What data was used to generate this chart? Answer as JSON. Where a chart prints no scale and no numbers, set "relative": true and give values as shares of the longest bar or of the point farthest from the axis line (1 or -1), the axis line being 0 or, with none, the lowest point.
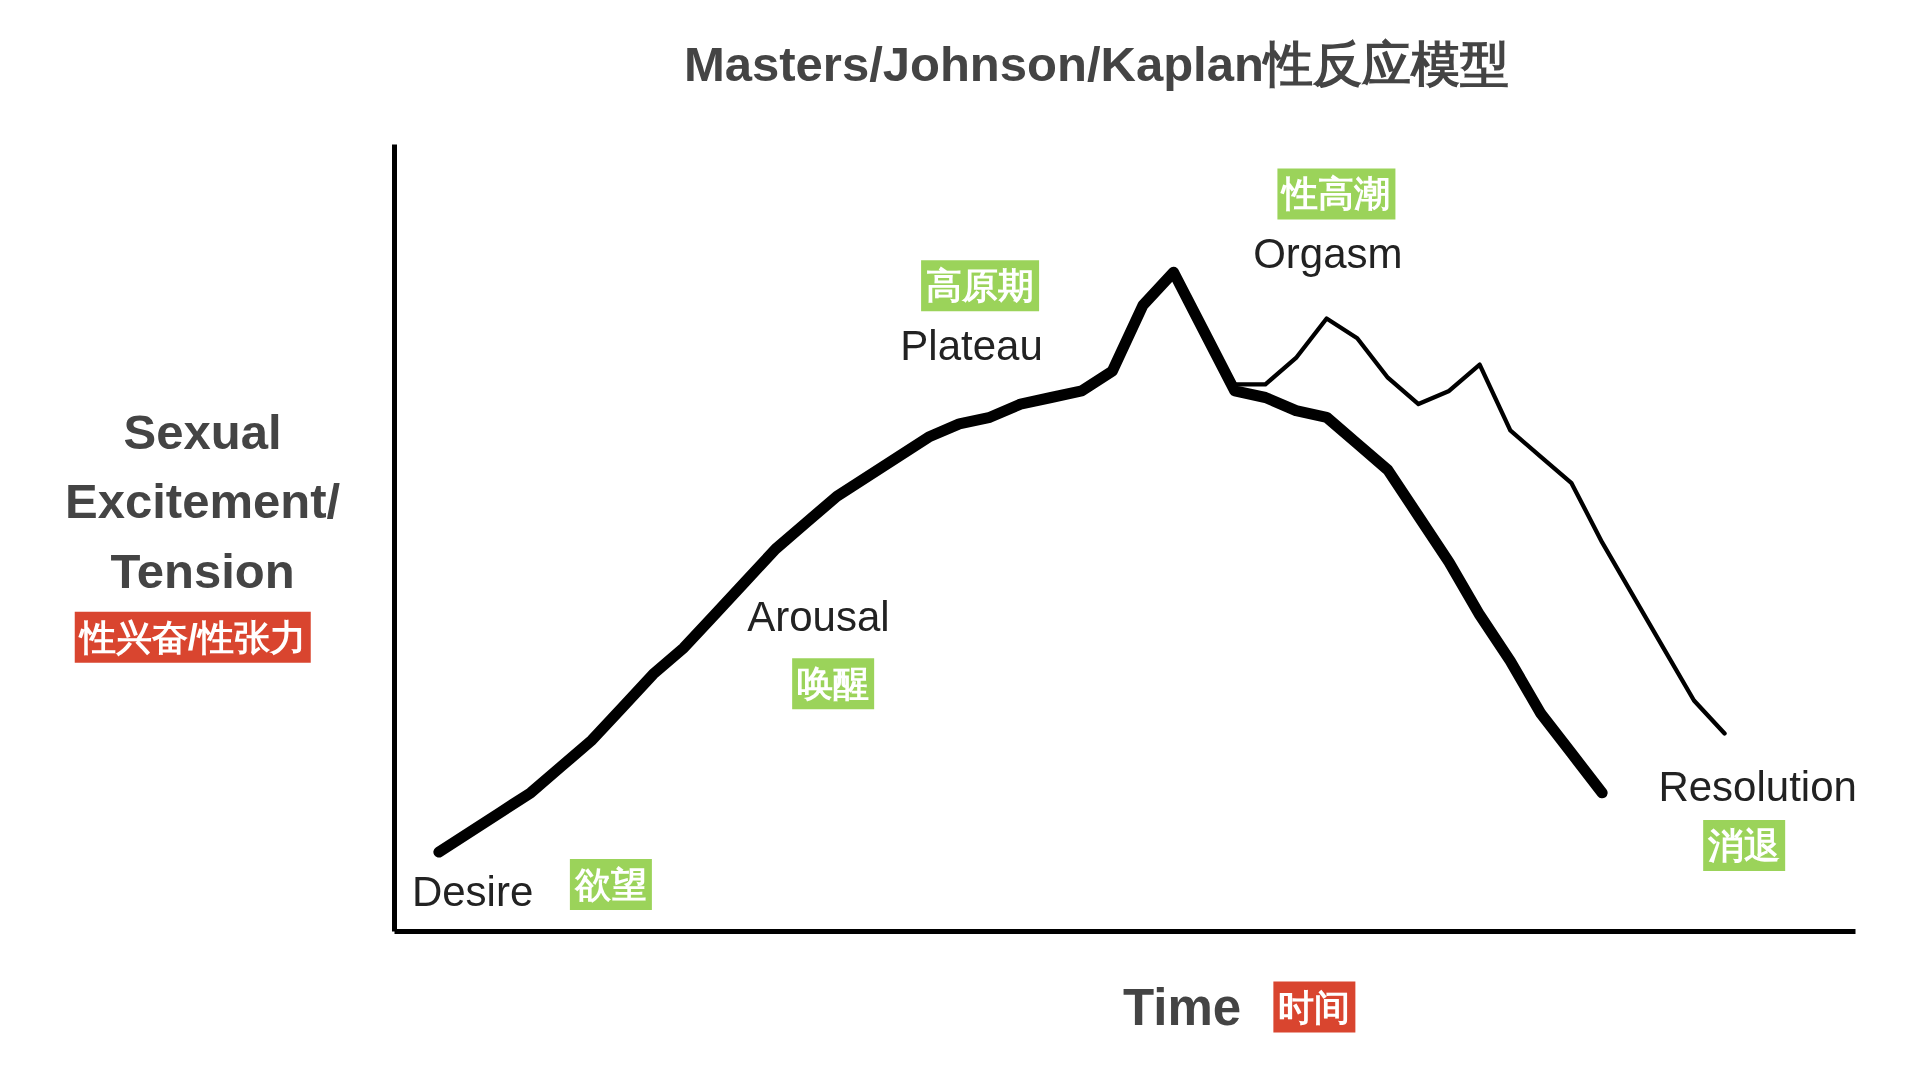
{
  "chart_data": {
    "type": "line",
    "title": "Masters/Johnson/Kaplan性反应模型",
    "ylabel": "Sexual Excitement/ Tension",
    "xlabel": "Time",
    "relative": true,
    "tick_labels": false,
    "grid": false,
    "legend": false,
    "line_style": "solid",
    "marker": "none",
    "categories": [
      null,
      null,
      null,
      null,
      null,
      null,
      null,
      null,
      null,
      null,
      null,
      null,
      null,
      null,
      null,
      null,
      null,
      null,
      null,
      null,
      null,
      null,
      null,
      null,
      null,
      null,
      null,
      null,
      null,
      null,
      null,
      null,
      null,
      null,
      null,
      null,
      null,
      null,
      null,
      null,
      null,
      null,
      null
    ],
    "series": [
      {
        "color": "#000000",
        "values": [
          0.12,
          0.15,
          0.18,
          0.21,
          0.25,
          0.29,
          0.34,
          0.39,
          0.43,
          0.48,
          0.53,
          0.58,
          0.62,
          0.66,
          0.69,
          0.72,
          0.75,
          0.77,
          0.78,
          0.8,
          0.81,
          0.82,
          0.85,
          0.95,
          1.0,
          0.91,
          0.82,
          0.81,
          0.79,
          0.78,
          0.74,
          0.7,
          0.63,
          0.56,
          0.48,
          0.41,
          0.33,
          0.27,
          0.21,
          null,
          null,
          null,
          null
        ]
      },
      {
        "color": "#000000",
        "values": [
          null,
          null,
          null,
          null,
          null,
          null,
          null,
          null,
          null,
          null,
          null,
          null,
          null,
          null,
          null,
          null,
          null,
          null,
          null,
          null,
          null,
          null,
          null,
          null,
          null,
          0.91,
          0.83,
          0.83,
          0.87,
          0.93,
          0.9,
          0.84,
          0.8,
          0.82,
          0.86,
          0.76,
          0.72,
          0.68,
          0.59,
          0.51,
          0.43,
          0.35,
          0.3
        ]
      }
    ],
    "annotations": [
      "Desire",
      "欲望",
      "Arousal",
      "唤醒",
      "Plateau",
      "高原期",
      "Orgasm",
      "性高潮",
      "Resolution",
      "消退",
      "性兴奋/性张力",
      "时间"
    ]
  }
}
